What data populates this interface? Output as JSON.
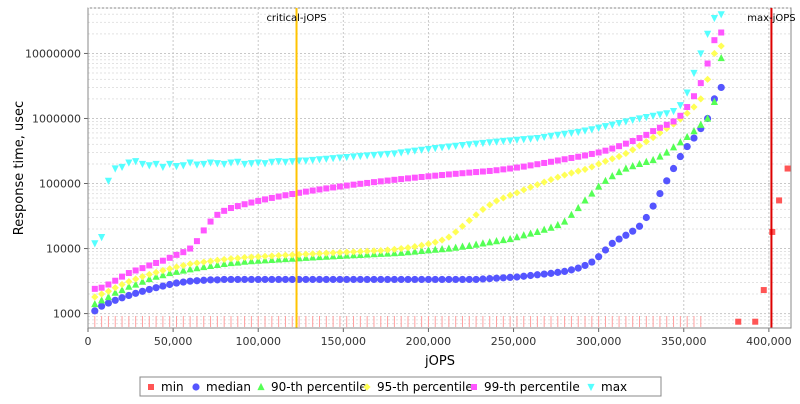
{
  "chart_data": {
    "type": "scatter",
    "title": "",
    "xlabel": "jOPS",
    "ylabel": "Response time, usec",
    "xlim": [
      0,
      413000
    ],
    "ylim": [
      600,
      50000000
    ],
    "yscale": "log",
    "grid": true,
    "legend_position": "bottom",
    "x_ticks": [
      0,
      50000,
      100000,
      150000,
      200000,
      250000,
      300000,
      350000,
      400000
    ],
    "x_tick_labels": [
      "0",
      "50,000",
      "100,000",
      "150,000",
      "200,000",
      "250,000",
      "300,000",
      "350,000",
      "400,000"
    ],
    "y_ticks": [
      1000,
      10000,
      100000,
      1000000,
      10000000
    ],
    "y_tick_labels": [
      "1000",
      "10000",
      "100000",
      "1000000",
      "10000000"
    ],
    "markers": [
      {
        "label": "critical-jOPS",
        "x": 122500,
        "color": "#ffc400"
      },
      {
        "label": "max-jOPS",
        "x": 401500,
        "color": "#dd0000"
      }
    ],
    "series": [
      {
        "name": "min",
        "color": "#ff5555",
        "shape": "square",
        "points": [
          [
            382000,
            750
          ],
          [
            392000,
            750
          ],
          [
            397000,
            2300
          ],
          [
            402000,
            18000
          ],
          [
            406000,
            55000
          ],
          [
            411000,
            170000
          ]
        ]
      },
      {
        "name": "median",
        "color": "#5555ff",
        "shape": "circle",
        "x_start": 4000,
        "x_step": 4000,
        "values": [
          1100,
          1300,
          1450,
          1600,
          1750,
          1900,
          2050,
          2200,
          2350,
          2500,
          2650,
          2800,
          2950,
          3050,
          3150,
          3200,
          3250,
          3300,
          3300,
          3350,
          3350,
          3350,
          3350,
          3350,
          3350,
          3350,
          3350,
          3350,
          3350,
          3350,
          3350,
          3350,
          3350,
          3350,
          3350,
          3350,
          3350,
          3350,
          3350,
          3350,
          3350,
          3350,
          3350,
          3350,
          3350,
          3350,
          3350,
          3350,
          3350,
          3350,
          3350,
          3350,
          3350,
          3350,
          3350,
          3350,
          3350,
          3400,
          3450,
          3500,
          3550,
          3600,
          3650,
          3750,
          3850,
          3950,
          4050,
          4150,
          4300,
          4450,
          4700,
          5000,
          5500,
          6200,
          7500,
          9500,
          12000,
          14000,
          16000,
          18500,
          22000,
          30000,
          45000,
          70000,
          110000,
          170000,
          260000,
          370000,
          500000,
          700000,
          1000000,
          2000000,
          3000000
        ]
      },
      {
        "name": "90-th percentile",
        "color": "#55ff55",
        "shape": "triangle-up",
        "x_start": 4000,
        "x_step": 4000,
        "values": [
          1400,
          1600,
          1800,
          2100,
          2300,
          2600,
          2800,
          3100,
          3400,
          3700,
          3900,
          4200,
          4400,
          4600,
          4800,
          5000,
          5200,
          5400,
          5600,
          5800,
          6000,
          6100,
          6300,
          6400,
          6500,
          6600,
          6700,
          6800,
          6900,
          7000,
          7100,
          7200,
          7300,
          7400,
          7500,
          7600,
          7700,
          7800,
          7900,
          8000,
          8100,
          8200,
          8300,
          8400,
          8500,
          8600,
          8800,
          9000,
          9200,
          9400,
          9600,
          9800,
          10000,
          10300,
          10700,
          11000,
          11500,
          12000,
          12500,
          13000,
          13500,
          14000,
          15000,
          16000,
          17000,
          18000,
          19500,
          21000,
          23000,
          26000,
          33000,
          42000,
          55000,
          70000,
          90000,
          110000,
          130000,
          150000,
          170000,
          185000,
          200000,
          215000,
          230000,
          260000,
          300000,
          360000,
          430000,
          520000,
          640000,
          800000,
          1000000,
          1800000,
          8500000
        ]
      },
      {
        "name": "95-th percentile",
        "color": "#ffff55",
        "shape": "diamond",
        "x_start": 4000,
        "x_step": 4000,
        "values": [
          1800,
          2000,
          2200,
          2500,
          2800,
          3100,
          3400,
          3700,
          4000,
          4300,
          4600,
          4900,
          5200,
          5500,
          5800,
          6000,
          6200,
          6400,
          6600,
          6800,
          7000,
          7100,
          7300,
          7400,
          7500,
          7600,
          7700,
          7800,
          7900,
          8000,
          8100,
          8200,
          8300,
          8400,
          8500,
          8600,
          8700,
          8800,
          8900,
          9000,
          9100,
          9200,
          9300,
          9500,
          9700,
          10000,
          10300,
          10700,
          11200,
          11800,
          12500,
          13500,
          15000,
          18000,
          22000,
          27000,
          33000,
          40000,
          47000,
          54000,
          60000,
          66000,
          72000,
          80000,
          88000,
          96000,
          105000,
          115000,
          125000,
          135000,
          145000,
          155000,
          165000,
          180000,
          200000,
          220000,
          240000,
          260000,
          290000,
          330000,
          380000,
          440000,
          510000,
          600000,
          700000,
          820000,
          980000,
          1200000,
          1500000,
          2000000,
          4000000,
          10000000,
          13000000
        ]
      },
      {
        "name": "99-th percentile",
        "color": "#ff55ff",
        "shape": "square",
        "x_start": 4000,
        "x_step": 4000,
        "values": [
          2400,
          2500,
          2800,
          3200,
          3700,
          4200,
          4600,
          5000,
          5500,
          6000,
          6500,
          7200,
          8000,
          8800,
          10000,
          13000,
          19000,
          26000,
          33000,
          38000,
          42000,
          45000,
          48000,
          51000,
          54000,
          57000,
          60000,
          63000,
          66000,
          69000,
          72000,
          75000,
          78000,
          81000,
          84000,
          87000,
          90000,
          93000,
          96000,
          99000,
          102000,
          105000,
          108000,
          111000,
          114000,
          117000,
          120000,
          123000,
          126000,
          129000,
          132000,
          135000,
          138000,
          141000,
          144000,
          147000,
          150000,
          153000,
          156000,
          160000,
          165000,
          170000,
          176000,
          182000,
          190000,
          198000,
          207000,
          216000,
          226000,
          236000,
          247000,
          258000,
          270000,
          285000,
          300000,
          320000,
          345000,
          375000,
          410000,
          450000,
          500000,
          560000,
          640000,
          720000,
          800000,
          900000,
          1100000,
          1500000,
          2200000,
          3500000,
          7000000,
          16000000,
          21000000
        ]
      },
      {
        "name": "max",
        "color": "#55ffff",
        "shape": "triangle-down",
        "x_start": 4000,
        "x_step": 4000,
        "values": [
          12000,
          15000,
          110000,
          170000,
          180000,
          210000,
          220000,
          200000,
          190000,
          200000,
          180000,
          200000,
          185000,
          190000,
          210000,
          195000,
          200000,
          210000,
          205000,
          200000,
          210000,
          215000,
          200000,
          205000,
          210000,
          205000,
          215000,
          220000,
          215000,
          220000,
          225000,
          225000,
          230000,
          235000,
          240000,
          245000,
          250000,
          255000,
          260000,
          265000,
          270000,
          275000,
          280000,
          285000,
          290000,
          300000,
          310000,
          320000,
          330000,
          340000,
          350000,
          360000,
          370000,
          380000,
          390000,
          400000,
          410000,
          420000,
          430000,
          440000,
          450000,
          460000,
          470000,
          480000,
          490000,
          500000,
          520000,
          540000,
          560000,
          580000,
          600000,
          620000,
          650000,
          680000,
          720000,
          760000,
          800000,
          850000,
          900000,
          950000,
          1000000,
          1050000,
          1100000,
          1150000,
          1200000,
          1300000,
          1600000,
          2500000,
          5000000,
          10000000,
          20000000,
          35000000,
          40000000
        ]
      }
    ]
  }
}
